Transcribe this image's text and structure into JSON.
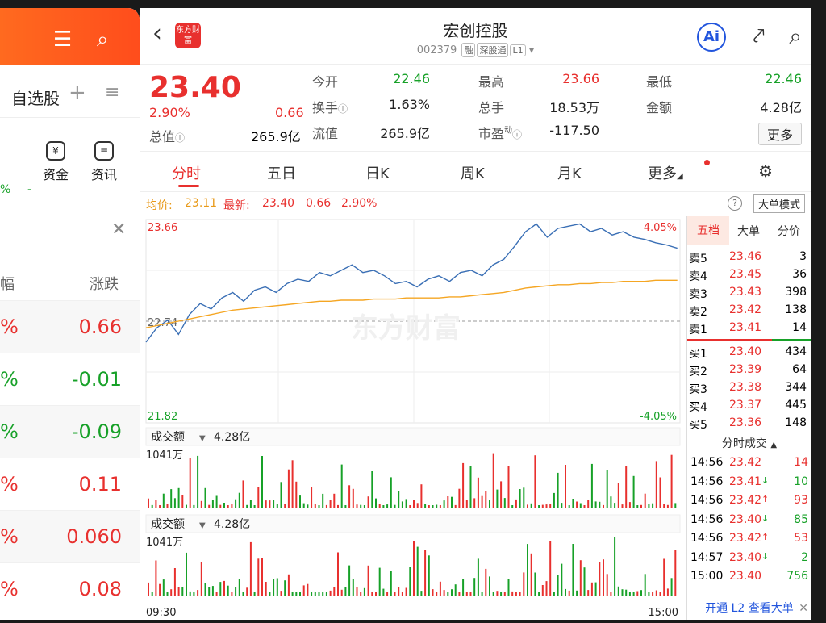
{
  "left_panel": {
    "watchlist_label": "自选股",
    "tools": [
      {
        "label": "资金"
      },
      {
        "label": "资讯"
      }
    ],
    "partial_pct": "%",
    "partial_dash": "-",
    "column_partial": "幅",
    "column_change": "涨跌",
    "rows": [
      {
        "pct": "%",
        "change": "0.66",
        "color": "#e8302e"
      },
      {
        "pct": "%",
        "change": "-0.01",
        "color": "#17a128"
      },
      {
        "pct": "%",
        "change": "-0.09",
        "color": "#17a128"
      },
      {
        "pct": "%",
        "change": "0.11",
        "color": "#e8302e"
      },
      {
        "pct": "%",
        "change": "0.060",
        "color": "#e8302e"
      },
      {
        "pct": "%",
        "change": "0.08",
        "color": "#e8302e"
      }
    ]
  },
  "header": {
    "title": "宏创控股",
    "code": "002379",
    "tags": [
      "融",
      "深股通",
      "L1"
    ],
    "logo_text": "东方财富",
    "ai_label": "Ai"
  },
  "quote": {
    "price": "23.40",
    "pct": "2.90%",
    "change": "0.66",
    "total_value_label": "总值",
    "total_value": "265.9亿",
    "fields": [
      {
        "label": "今开",
        "value": "22.46",
        "color": "#17a128"
      },
      {
        "label": "最高",
        "value": "23.66",
        "color": "#e8302e"
      },
      {
        "label": "最低",
        "value": "22.46",
        "color": "#17a128"
      },
      {
        "label": "换手",
        "value": "1.63%",
        "color": "#222"
      },
      {
        "label": "总手",
        "value": "18.53万",
        "color": "#222"
      },
      {
        "label": "金额",
        "value": "4.28亿",
        "color": "#222"
      },
      {
        "label": "流值",
        "value": "265.9亿",
        "color": "#222"
      },
      {
        "label": "市盈",
        "sup": "动",
        "value": "-117.50",
        "color": "#222"
      }
    ],
    "more_label": "更多"
  },
  "tabs": [
    "分时",
    "五日",
    "日K",
    "周K",
    "月K",
    "更多"
  ],
  "avg_bar": {
    "avg_label": "均价:",
    "avg_value": "23.11",
    "latest_label": "最新:",
    "latest_value": "23.40",
    "latest_change": "0.66",
    "latest_pct": "2.90%",
    "big_order_label": "大单模式"
  },
  "chart": {
    "y_top": "23.66",
    "y_mid": "22.74",
    "y_bottom": "21.82",
    "pct_top": "4.05%",
    "pct_bottom": "-4.05%",
    "watermark": "东方财富",
    "volume_panels": [
      {
        "label": "成交额",
        "value": "4.28亿",
        "max_label": "1041万"
      },
      {
        "label": "成交额",
        "value": "4.28亿",
        "max_label": "1041万"
      }
    ],
    "time_start": "09:30",
    "time_end": "15:00"
  },
  "chart_data": {
    "type": "line",
    "y_range": [
      21.82,
      23.66
    ],
    "series": [
      {
        "values": [
          22.55,
          22.68,
          22.75,
          22.62,
          22.8,
          22.9,
          22.85,
          22.95,
          23.0,
          22.92,
          23.02,
          23.05,
          23.0,
          23.08,
          23.12,
          23.1,
          23.18,
          23.15,
          23.2,
          23.25,
          23.18,
          23.2,
          23.15,
          23.08,
          23.1,
          23.05,
          23.12,
          23.15,
          23.1,
          23.18,
          23.2,
          23.15,
          23.25,
          23.3,
          23.42,
          23.55,
          23.62,
          23.5,
          23.58,
          23.6,
          23.62,
          23.55,
          23.58,
          23.52,
          23.55,
          23.5,
          23.48,
          23.45,
          23.43,
          23.4
        ]
      },
      {
        "values": [
          22.68,
          22.7,
          22.72,
          22.74,
          22.76,
          22.78,
          22.8,
          22.82,
          22.84,
          22.85,
          22.86,
          22.87,
          22.88,
          22.89,
          22.9,
          22.91,
          22.92,
          22.92,
          22.93,
          22.93,
          22.93,
          22.94,
          22.94,
          22.94,
          22.95,
          22.95,
          22.95,
          22.95,
          22.96,
          22.96,
          22.97,
          22.98,
          22.99,
          23.0,
          23.02,
          23.04,
          23.05,
          23.06,
          23.07,
          23.07,
          23.08,
          23.08,
          23.09,
          23.09,
          23.1,
          23.1,
          23.1,
          23.11,
          23.11,
          23.11
        ]
      }
    ]
  },
  "book": {
    "tabs": [
      "五档",
      "大单",
      "分价"
    ],
    "sells": [
      {
        "label": "卖5",
        "price": "23.46",
        "vol": "3"
      },
      {
        "label": "卖4",
        "price": "23.45",
        "vol": "36"
      },
      {
        "label": "卖3",
        "price": "23.43",
        "vol": "398"
      },
      {
        "label": "卖2",
        "price": "23.42",
        "vol": "138"
      },
      {
        "label": "卖1",
        "price": "23.41",
        "vol": "14"
      }
    ],
    "buys": [
      {
        "label": "买1",
        "price": "23.40",
        "vol": "434"
      },
      {
        "label": "买2",
        "price": "23.39",
        "vol": "64"
      },
      {
        "label": "买3",
        "price": "23.38",
        "vol": "344"
      },
      {
        "label": "买4",
        "price": "23.37",
        "vol": "445"
      },
      {
        "label": "买5",
        "price": "23.36",
        "vol": "148"
      }
    ],
    "ticks_title": "分时成交",
    "ticks": [
      {
        "time": "14:56",
        "price": "23.42",
        "arrow": "",
        "vol": "14",
        "color": "#e8302e"
      },
      {
        "time": "14:56",
        "price": "23.41",
        "arrow": "↓",
        "vol": "10",
        "color": "#17a128"
      },
      {
        "time": "14:56",
        "price": "23.42",
        "arrow": "↑",
        "vol": "93",
        "color": "#e8302e"
      },
      {
        "time": "14:56",
        "price": "23.40",
        "arrow": "↓",
        "vol": "85",
        "color": "#17a128"
      },
      {
        "time": "14:56",
        "price": "23.42",
        "arrow": "↑",
        "vol": "53",
        "color": "#e8302e"
      },
      {
        "time": "14:57",
        "price": "23.40",
        "arrow": "↓",
        "vol": "2",
        "color": "#17a128"
      },
      {
        "time": "15:00",
        "price": "23.40",
        "arrow": "",
        "vol": "756",
        "color": "#17a128"
      }
    ],
    "l2_label": "开通 L2 查看大单"
  }
}
